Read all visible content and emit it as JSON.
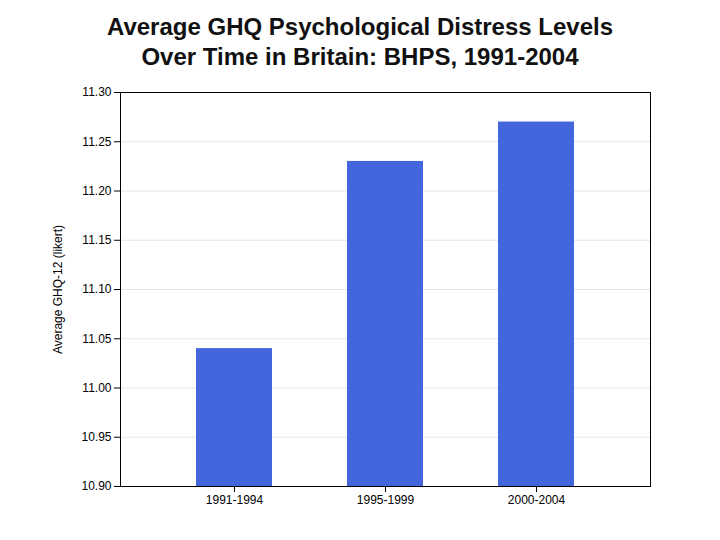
{
  "chart_data": {
    "type": "bar",
    "title": "Average GHQ Psychological Distress Levels",
    "subtitle": "Over Time in Britain: BHPS, 1991-2004",
    "categories": [
      "1991-1994",
      "1995-1999",
      "2000-2004"
    ],
    "values": [
      11.04,
      11.23,
      11.27
    ],
    "color": "#4466dd",
    "ylabel": "Average GHQ-12 (likert)",
    "ylim": [
      10.9,
      11.3
    ],
    "yticks": [
      {
        "value": 10.9,
        "label": "10.90"
      },
      {
        "value": 10.95,
        "label": "10.95"
      },
      {
        "value": 11.0,
        "label": "11.00"
      },
      {
        "value": 11.05,
        "label": "11.05"
      },
      {
        "value": 11.1,
        "label": "11.10"
      },
      {
        "value": 11.15,
        "label": "11.15"
      },
      {
        "value": 11.2,
        "label": "11.20"
      },
      {
        "value": 11.25,
        "label": "11.25"
      },
      {
        "value": 11.3,
        "label": "11.30"
      }
    ],
    "grid": true
  }
}
